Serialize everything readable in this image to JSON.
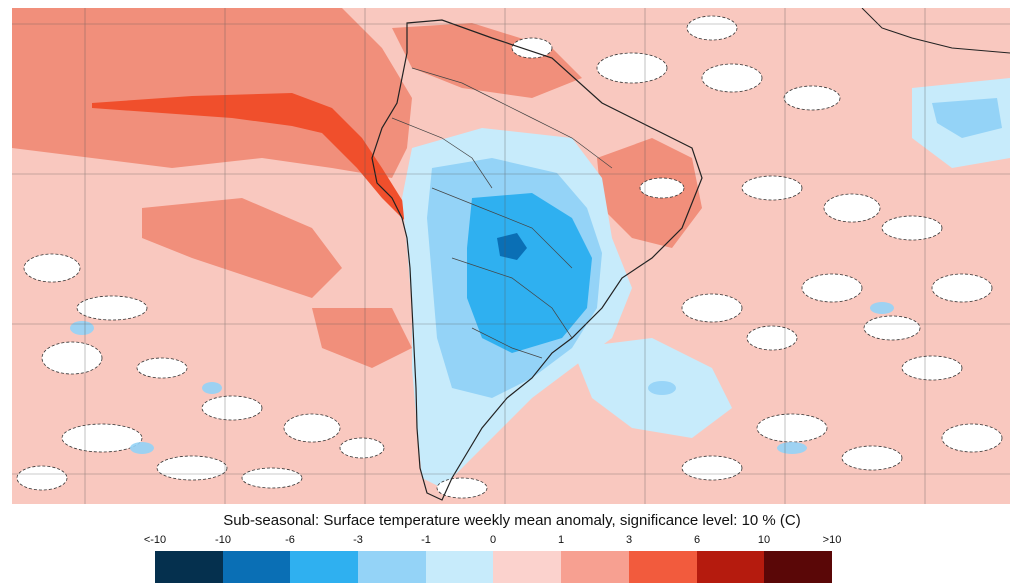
{
  "caption": "Sub-seasonal: Surface temperature weekly mean anomaly, significance level: 10 % (C)",
  "colorbar": {
    "ticks": [
      "<-10",
      "-10",
      "-6",
      "-3",
      "-1",
      "0",
      "1",
      "3",
      "6",
      "10",
      ">10"
    ],
    "colors": [
      "#05304e",
      "#0a6fb5",
      "#2fb0f0",
      "#94d3f7",
      "#c7ebfb",
      "#fbd2cd",
      "#f7a091",
      "#f25b3d",
      "#b51b0e",
      "#5a0707"
    ]
  },
  "map": {
    "ocean_anomaly_color": "#f9c8bf",
    "warm_anomaly_color": "#f18f7b",
    "strong_warm_color": "#f04f2c",
    "cool_anomaly_color": "#92cff5",
    "strong_cool_color": "#2f9fe8",
    "deep_cool_color": "#2a6ea8"
  }
}
